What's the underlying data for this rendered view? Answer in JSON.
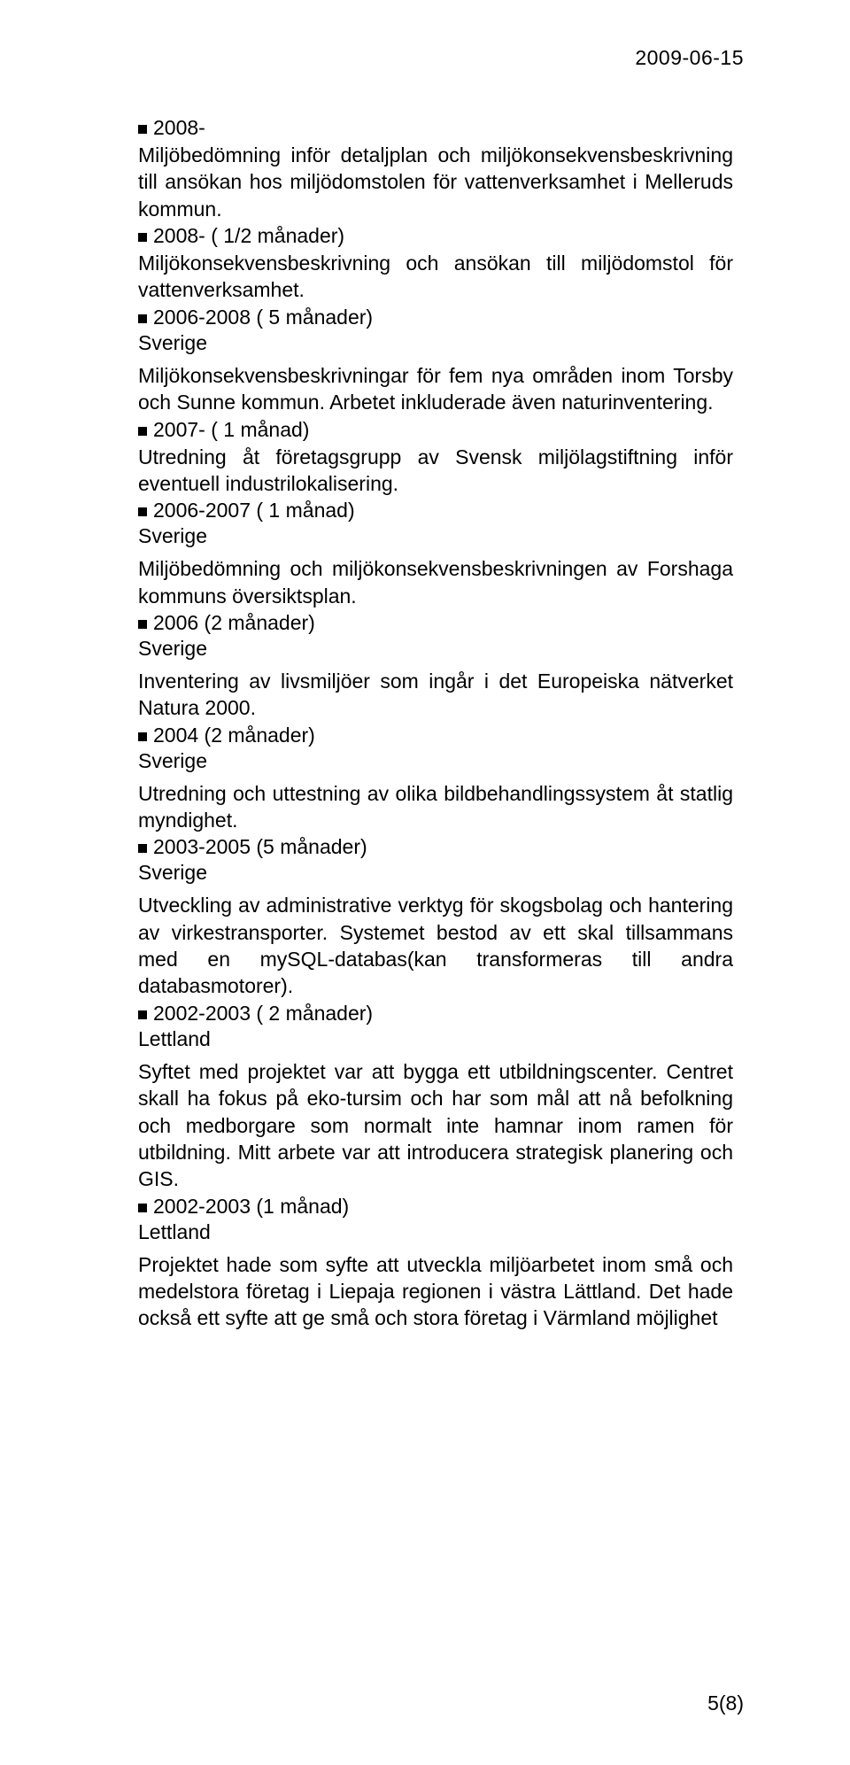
{
  "header": {
    "date": "2009-06-15"
  },
  "entries": [
    {
      "period": "2008-",
      "country": "",
      "desc": "Miljöbedömning inför detaljplan och miljökonsekvensbeskrivning till ansökan hos miljödomstolen för vattenverksamhet i Melleruds kommun."
    },
    {
      "period": "2008- ( 1/2 månader)",
      "country": "",
      "desc": "Miljökonsekvensbeskrivning och ansökan till miljödomstol för vattenverksamhet."
    },
    {
      "period": "2006-2008 ( 5 månader)",
      "country": "Sverige",
      "desc": "Miljökonsekvensbeskrivningar för fem nya områden inom Torsby och Sunne kommun. Arbetet inkluderade även naturinventering."
    },
    {
      "period": "2007- ( 1 månad)",
      "country": "",
      "desc": "Utredning åt företagsgrupp av Svensk miljölagstiftning inför eventuell industrilokalisering."
    },
    {
      "period": "2006-2007 ( 1 månad)",
      "country": "Sverige",
      "desc": "Miljöbedömning och miljökonsekvensbeskrivningen av Forshaga kommuns översiktsplan."
    },
    {
      "period": "2006 (2 månader)",
      "country": "Sverige",
      "desc": "Inventering av livsmiljöer som ingår i det Europeiska nätverket Natura 2000."
    },
    {
      "period": "2004 (2 månader)",
      "country": "Sverige",
      "desc": "Utredning och uttestning av olika bildbehandlingssystem åt statlig myndighet."
    },
    {
      "period": "2003-2005 (5 månader)",
      "country": "Sverige",
      "desc": "Utveckling av administrative verktyg för skogsbolag och hantering av virkestransporter. Systemet bestod av ett skal tillsammans med en mySQL-databas(kan transformeras till andra databasmotorer)."
    },
    {
      "period": "2002-2003 ( 2 månader)",
      "country": "Lettland",
      "desc": "Syftet med projektet var att bygga ett utbildningscenter. Centret skall ha fokus på eko-tursim och har som mål att nå befolkning och medborgare som normalt inte hamnar inom ramen för utbildning. Mitt arbete var att introducera strategisk planering och GIS."
    },
    {
      "period": "2002-2003 (1 månad)",
      "country": "Lettland",
      "desc": "Projektet hade som syfte att utveckla miljöarbetet inom små och medelstora företag i Liepaja regionen i västra Lättland. Det hade också ett syfte att ge små och stora företag i Värmland möjlighet"
    }
  ],
  "footer": {
    "page_number": "5(8)"
  }
}
